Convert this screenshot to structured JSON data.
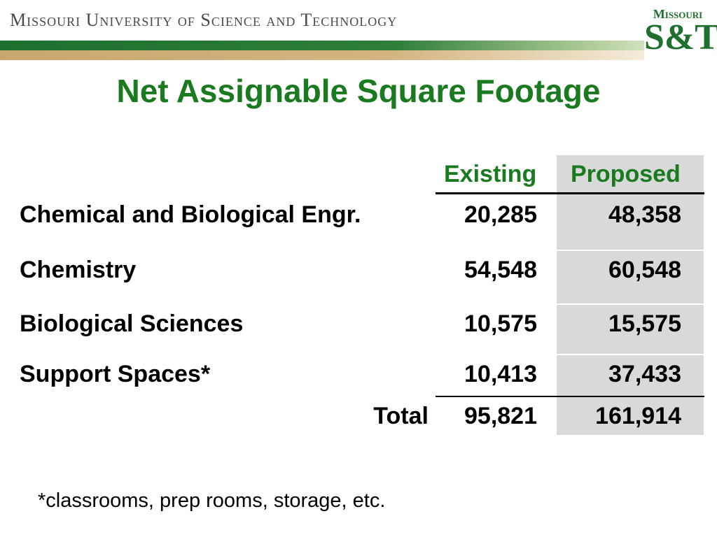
{
  "header": {
    "university_name": "Missouri University of Science and Technology",
    "logo_top": "Missouri",
    "logo_main": "S&T"
  },
  "title": "Net Assignable Square Footage",
  "table": {
    "columns": [
      "Existing",
      "Proposed"
    ],
    "rows": [
      {
        "label": "Chemical and Biological Engr.",
        "existing": "20,285",
        "proposed": "48,358"
      },
      {
        "label": "Chemistry",
        "existing": "54,548",
        "proposed": "60,548"
      },
      {
        "label": "Biological Sciences",
        "existing": "10,575",
        "proposed": "15,575"
      },
      {
        "label": "Support Spaces*",
        "existing": "10,413",
        "proposed": "37,433"
      }
    ],
    "total": {
      "label": "Total",
      "existing": "95,821",
      "proposed": "161,914"
    }
  },
  "footnote": "*classrooms, prep rooms, storage, etc."
}
